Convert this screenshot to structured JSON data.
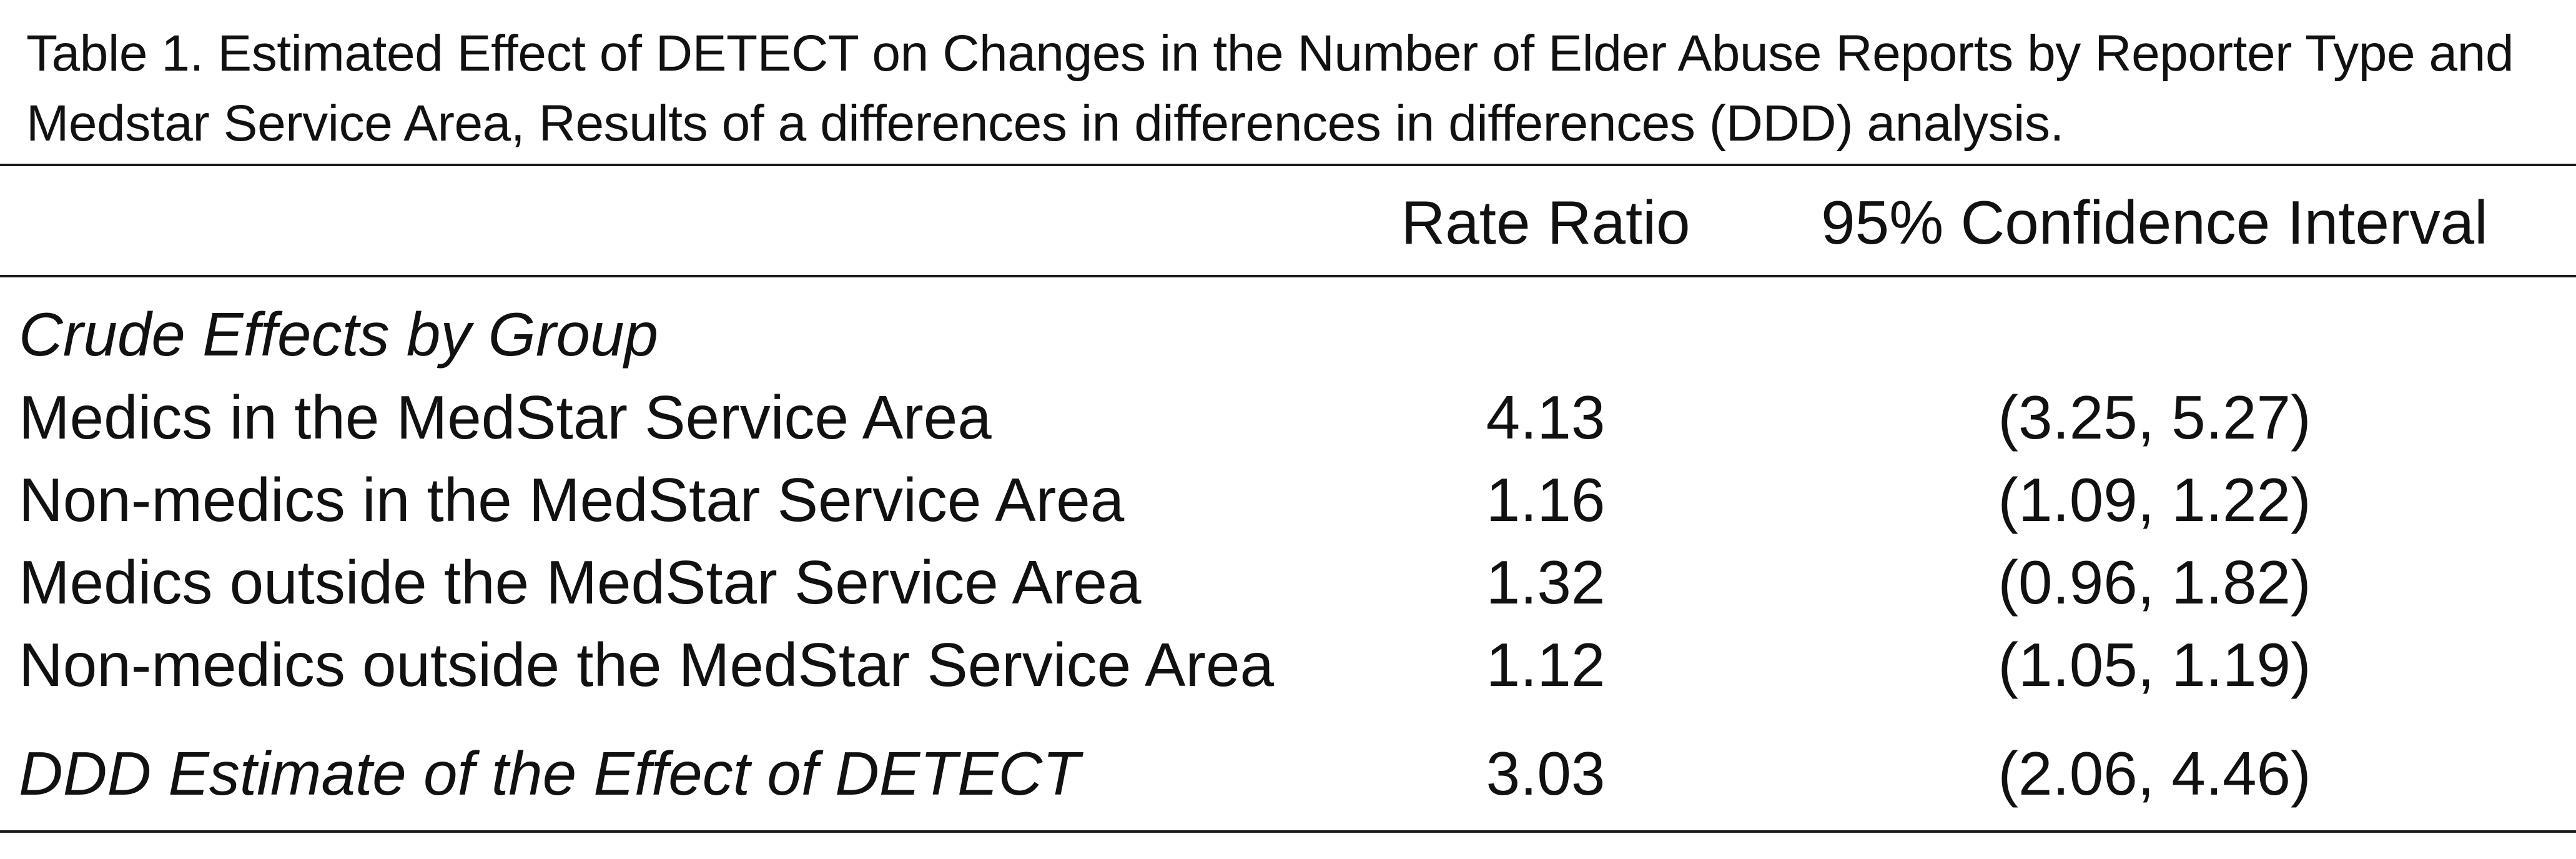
{
  "caption": {
    "label": "Table 1.",
    "text": "Estimated Effect of DETECT on Changes in the Number of Elder Abuse Reports by Reporter Type and Medstar Service Area, Results of a differences in differences in differences (DDD) analysis."
  },
  "table": {
    "headers": {
      "label": "",
      "rate_ratio": "Rate Ratio",
      "ci": "95% Confidence Interval"
    },
    "section_label": "Crude Effects by Group",
    "rows": [
      {
        "label": "Medics in the MedStar Service Area",
        "rate_ratio": "4.13",
        "ci": "(3.25, 5.27)"
      },
      {
        "label": "Non-medics in the MedStar Service Area",
        "rate_ratio": "1.16",
        "ci": "(1.09, 1.22)"
      },
      {
        "label": "Medics outside the MedStar Service Area",
        "rate_ratio": "1.32",
        "ci": "(0.96, 1.82)"
      },
      {
        "label": "Non-medics outside the MedStar Service Area",
        "rate_ratio": "1.12",
        "ci": "(1.05, 1.19)"
      }
    ],
    "summary": {
      "label": "DDD Estimate of the Effect of DETECT",
      "rate_ratio": "3.03",
      "ci": "(2.06, 4.46)"
    }
  }
}
